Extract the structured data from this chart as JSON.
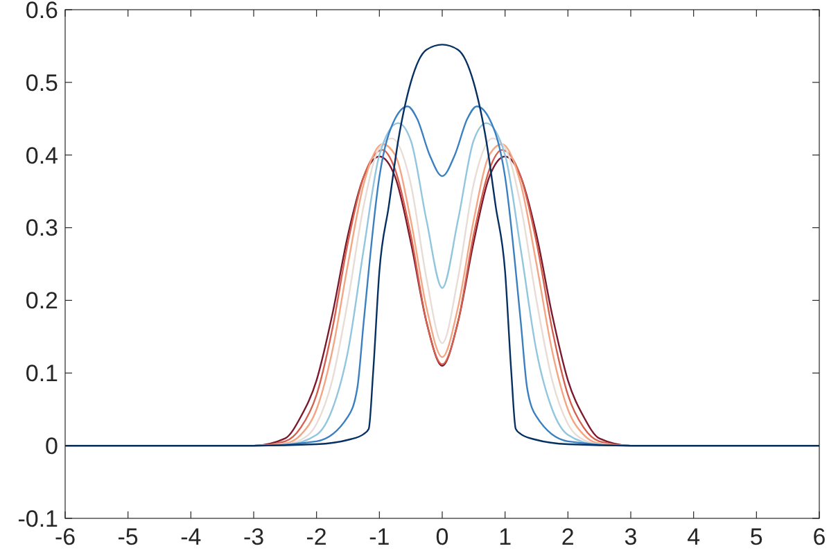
{
  "chart_data": {
    "type": "line",
    "xlim": [
      -6,
      6
    ],
    "ylim": [
      -0.1,
      0.6
    ],
    "xticks": [
      -6,
      -5,
      -4,
      -3,
      -2,
      -1,
      0,
      1,
      2,
      3,
      4,
      5,
      6
    ],
    "yticks": [
      -0.1,
      0,
      0.1,
      0.2,
      0.3,
      0.4,
      0.5,
      0.6
    ],
    "grid": false,
    "marker": "none",
    "line_style": "solid",
    "series": [
      {
        "color": "#7a1a2e",
        "x": [
          -6,
          -3,
          -2.5,
          -2.25,
          -2,
          -1.75,
          -1.5,
          -1.25,
          -1,
          -0.75,
          -0.5,
          -0.25,
          0,
          0.25,
          0.5,
          0.75,
          1,
          1.25,
          1.5,
          1.75,
          2,
          2.25,
          2.5,
          3,
          6
        ],
        "values": [
          0,
          0,
          0.01,
          0.04,
          0.09,
          0.18,
          0.29,
          0.37,
          0.398,
          0.37,
          0.28,
          0.17,
          0.11,
          0.17,
          0.28,
          0.37,
          0.398,
          0.37,
          0.29,
          0.18,
          0.09,
          0.04,
          0.01,
          0,
          0
        ]
      },
      {
        "color": "#d6604d",
        "x": [
          -6,
          -3,
          -2.5,
          -2.25,
          -2,
          -1.75,
          -1.5,
          -1.25,
          -0.95,
          -0.75,
          -0.5,
          -0.25,
          0,
          0.25,
          0.5,
          0.75,
          0.95,
          1.25,
          1.5,
          1.75,
          2,
          2.25,
          2.5,
          3,
          6
        ],
        "values": [
          0,
          0,
          0.006,
          0.025,
          0.07,
          0.16,
          0.28,
          0.37,
          0.407,
          0.38,
          0.29,
          0.17,
          0.112,
          0.17,
          0.29,
          0.38,
          0.407,
          0.37,
          0.28,
          0.16,
          0.07,
          0.025,
          0.006,
          0,
          0
        ]
      },
      {
        "color": "#f4a582",
        "x": [
          -6,
          -3,
          -2.5,
          -2.25,
          -2,
          -1.75,
          -1.5,
          -1.25,
          -0.95,
          -0.75,
          -0.5,
          -0.25,
          0,
          0.25,
          0.5,
          0.75,
          0.95,
          1.25,
          1.5,
          1.75,
          2,
          2.25,
          2.5,
          3,
          6
        ],
        "values": [
          0,
          0,
          0.003,
          0.015,
          0.05,
          0.13,
          0.25,
          0.36,
          0.415,
          0.4,
          0.31,
          0.19,
          0.122,
          0.19,
          0.31,
          0.4,
          0.415,
          0.36,
          0.25,
          0.13,
          0.05,
          0.015,
          0.003,
          0,
          0
        ]
      },
      {
        "color": "#e8dcd6",
        "x": [
          -6,
          -3,
          -2.5,
          -2.25,
          -2,
          -1.75,
          -1.5,
          -1.25,
          -1,
          -0.8,
          -0.5,
          -0.25,
          0,
          0.25,
          0.5,
          0.8,
          1,
          1.25,
          1.5,
          1.75,
          2,
          2.25,
          2.5,
          3,
          6
        ],
        "values": [
          0,
          0,
          0.002,
          0.008,
          0.03,
          0.09,
          0.2,
          0.33,
          0.41,
          0.423,
          0.36,
          0.23,
          0.141,
          0.23,
          0.36,
          0.423,
          0.41,
          0.33,
          0.2,
          0.09,
          0.03,
          0.008,
          0.002,
          0,
          0
        ]
      },
      {
        "color": "#92c5de",
        "x": [
          -6,
          -3,
          -2.5,
          -2,
          -1.75,
          -1.5,
          -1.25,
          -1,
          -0.7,
          -0.5,
          -0.25,
          0,
          0.25,
          0.5,
          0.7,
          1,
          1.25,
          1.5,
          1.75,
          2,
          2.5,
          3,
          6
        ],
        "values": [
          0,
          0,
          0.001,
          0.015,
          0.05,
          0.13,
          0.27,
          0.4,
          0.444,
          0.42,
          0.31,
          0.217,
          0.31,
          0.42,
          0.444,
          0.4,
          0.27,
          0.13,
          0.05,
          0.015,
          0.001,
          0,
          0
        ]
      },
      {
        "color": "#3a7fc0",
        "x": [
          -6,
          -3,
          -2,
          -1.5,
          -1.35,
          -1.25,
          -1,
          -0.75,
          -0.55,
          -0.4,
          -0.2,
          0,
          0.2,
          0.4,
          0.55,
          0.75,
          1,
          1.25,
          1.35,
          1.5,
          2,
          3,
          6
        ],
        "values": [
          0,
          0,
          0.006,
          0.04,
          0.08,
          0.17,
          0.37,
          0.45,
          0.467,
          0.45,
          0.4,
          0.371,
          0.4,
          0.45,
          0.467,
          0.45,
          0.37,
          0.17,
          0.08,
          0.04,
          0.006,
          0,
          0
        ]
      },
      {
        "color": "#053061",
        "x": [
          -6,
          -3,
          -2,
          -1.5,
          -1.25,
          -1.17,
          -1.1,
          -1,
          -0.85,
          -0.7,
          -0.5,
          -0.25,
          0,
          0.25,
          0.5,
          0.7,
          0.85,
          1,
          1.1,
          1.17,
          1.25,
          1.5,
          2,
          3,
          6
        ],
        "values": [
          0,
          0,
          0.002,
          0.008,
          0.016,
          0.023,
          0.1,
          0.24,
          0.33,
          0.42,
          0.5,
          0.545,
          0.552,
          0.545,
          0.5,
          0.42,
          0.33,
          0.24,
          0.1,
          0.023,
          0.016,
          0.008,
          0.002,
          0,
          0
        ]
      }
    ]
  }
}
